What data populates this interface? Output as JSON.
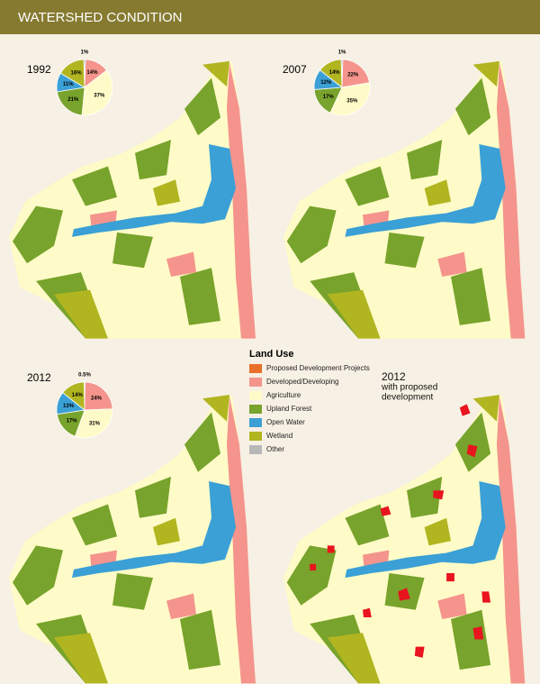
{
  "header": {
    "title": "WATERSHED CONDITION"
  },
  "chart_data": [
    {
      "type": "pie",
      "title": "1992",
      "values": [
        1,
        14,
        37,
        21,
        11,
        16
      ],
      "value_labels": [
        "1%",
        "14%",
        "37%",
        "21%",
        "11%",
        "16%"
      ],
      "colors": [
        "#b8b8b8",
        "#f4948c",
        "#fffbc8",
        "#78a32c",
        "#3ba0d6",
        "#b1b520"
      ]
    },
    {
      "type": "pie",
      "title": "2007",
      "values": [
        1,
        22,
        35,
        17,
        12,
        14
      ],
      "value_labels": [
        "1%",
        "22%",
        "35%",
        "17%",
        "12%",
        "14%"
      ],
      "colors": [
        "#b8b8b8",
        "#f4948c",
        "#fffbc8",
        "#78a32c",
        "#3ba0d6",
        "#b1b520"
      ]
    },
    {
      "type": "pie",
      "title": "2012",
      "values": [
        0.5,
        24,
        31,
        17,
        13,
        14
      ],
      "value_labels": [
        "0.5%",
        "24%",
        "31%",
        "17%",
        "13%",
        "14%"
      ],
      "colors": [
        "#b8b8b8",
        "#f4948c",
        "#fffbc8",
        "#78a32c",
        "#3ba0d6",
        "#b1b520"
      ]
    }
  ],
  "legend": {
    "title": "Land Use",
    "items": [
      {
        "label": "Proposed Development Projects",
        "color": "#e8702a"
      },
      {
        "label": "Developed/Developing",
        "color": "#f4948c"
      },
      {
        "label": "Agriculture",
        "color": "#fffbc8"
      },
      {
        "label": "Upland Forest",
        "color": "#78a32c"
      },
      {
        "label": "Open Water",
        "color": "#3ba0d6"
      },
      {
        "label": "Wetland",
        "color": "#b1b520"
      },
      {
        "label": "Other",
        "color": "#b8b8b8"
      }
    ]
  },
  "panel_label": [
    "2012",
    "with proposed",
    "development"
  ]
}
